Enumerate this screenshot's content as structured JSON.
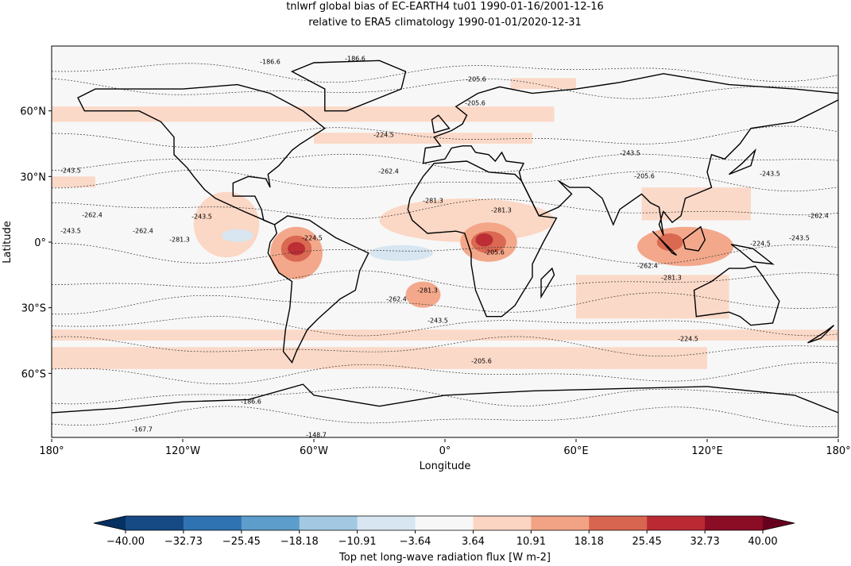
{
  "map": {
    "title": [
      "tnlwrf global bias of EC-EARTH4 tu01 1990-01-16/2001-12-16",
      "relative to ERA5 climatology 1990-01-01/2020-12-31"
    ],
    "xlabel": "Longitude",
    "ylabel": "Latitude",
    "xlim": [
      -180,
      180
    ],
    "ylim": [
      -90,
      90
    ],
    "xticks": [
      {
        "value": -180,
        "label": "180°"
      },
      {
        "value": -120,
        "label": "120°W"
      },
      {
        "value": -60,
        "label": "60°W"
      },
      {
        "value": 0,
        "label": "0°"
      },
      {
        "value": 60,
        "label": "60°E"
      },
      {
        "value": 120,
        "label": "120°E"
      },
      {
        "value": 180,
        "label": "180°"
      }
    ],
    "yticks": [
      {
        "value": 60,
        "label": "60°N"
      },
      {
        "value": 30,
        "label": "30°N"
      },
      {
        "value": 0,
        "label": "0°"
      },
      {
        "value": -30,
        "label": "30°S"
      },
      {
        "value": -60,
        "label": "60°S"
      }
    ],
    "contour_labels": [
      -186.6,
      -186.6,
      -205.6,
      -205.6,
      -224.5,
      -243.5,
      -262.4,
      -243.5,
      -205.6,
      -243.5,
      -281.3,
      -281.3,
      -262.4,
      -243.5,
      -262.4,
      -243.5,
      -262.4,
      -281.3,
      -224.5,
      -205.6,
      -224.5,
      -243.5,
      -262.4,
      -281.3,
      -281.3,
      -262.4,
      -243.5,
      -224.5,
      -205.6,
      -186.6,
      -167.7,
      -148.7
    ],
    "colorbar": {
      "label": "Top net long-wave radiation flux [W m-2]",
      "ticks": [
        {
          "value": -40,
          "label": "−40.00"
        },
        {
          "value": -32.73,
          "label": "−32.73"
        },
        {
          "value": -25.45,
          "label": "−25.45"
        },
        {
          "value": -18.18,
          "label": "−18.18"
        },
        {
          "value": -10.91,
          "label": "−10.91"
        },
        {
          "value": -3.64,
          "label": "−3.64"
        },
        {
          "value": 3.64,
          "label": "3.64"
        },
        {
          "value": 10.91,
          "label": "10.91"
        },
        {
          "value": 18.18,
          "label": "18.18"
        },
        {
          "value": 25.45,
          "label": "25.45"
        },
        {
          "value": 32.73,
          "label": "32.73"
        },
        {
          "value": 40,
          "label": "40.00"
        }
      ],
      "colors": [
        "#154a85",
        "#2f73b2",
        "#5d9dcb",
        "#a2c9e1",
        "#d7e6f0",
        "#f7f7f7",
        "#fbd5c2",
        "#f2a385",
        "#d8654f",
        "#bb2a33",
        "#8a0c25"
      ],
      "under_color": "#053061",
      "over_color": "#67001f"
    }
  }
}
